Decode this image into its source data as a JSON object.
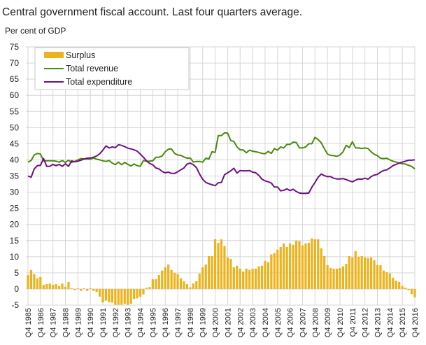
{
  "chart_data": {
    "type": "bar+line",
    "title": "Central government fiscal account. Last four quarters average.",
    "ylabel": "Per cent of GDP",
    "xlabel": "",
    "ylim": [
      -5,
      75
    ],
    "yticks": [
      -5,
      0,
      5,
      10,
      15,
      20,
      25,
      30,
      35,
      40,
      45,
      50,
      55,
      60,
      65,
      70,
      75
    ],
    "grid": true,
    "legend_placement": "top-left",
    "x_start": "Q4 1985",
    "x_end": "Q4 2016",
    "x_frequency": "quarterly",
    "xtick_labels": [
      "Q4 1985",
      "Q4 1986",
      "Q4 1987",
      "Q4 1988",
      "Q4 1989",
      "Q4 1990",
      "Q4 1991",
      "Q4 1992",
      "Q4 1993",
      "Q4 1994",
      "Q4 1995",
      "Q4 1996",
      "Q4 1997",
      "Q4 1998",
      "Q4 1999",
      "Q4 2000",
      "Q4 2001",
      "Q4 2002",
      "Q4 2003",
      "Q4 2004",
      "Q4 2005",
      "Q4 2006",
      "Q4 2007",
      "Q4 2008",
      "Q4 2009",
      "Q4 2010",
      "Q4 2011",
      "Q4 2012",
      "Q4 2013",
      "Q4 2014",
      "Q4 2015",
      "Q4 2016"
    ],
    "series": [
      {
        "name": "Surplus",
        "type": "bar",
        "color": "#EBB31E",
        "values": [
          4.3,
          5.9,
          4.6,
          3.3,
          3.7,
          1.3,
          1.5,
          1.7,
          1.3,
          1.5,
          0.9,
          1.7,
          0.7,
          2.2,
          0.2,
          -0.4,
          0.2,
          -0.6,
          0.2,
          -0.6,
          0.2,
          -0.6,
          -0.9,
          -2.4,
          -4.2,
          -3.6,
          -4.1,
          -4.2,
          -4.9,
          -4.9,
          -4.9,
          -4.6,
          -4.9,
          -4.6,
          -3.1,
          -2.9,
          -2.4,
          -1.7,
          0.4,
          0.6,
          3.0,
          3.0,
          4.3,
          5.7,
          6.7,
          7.6,
          5.9,
          5.0,
          4.6,
          3.3,
          2.4,
          1.5,
          0.5,
          1.7,
          2.4,
          4.8,
          6.7,
          7.6,
          10.2,
          10.2,
          15.4,
          14.3,
          15.4,
          13.3,
          9.8,
          9.3,
          6.7,
          7.2,
          6.3,
          5.4,
          6.3,
          5.9,
          6.3,
          6.3,
          7.0,
          7.2,
          8.7,
          8.3,
          10.7,
          11.1,
          12.2,
          13.0,
          14.1,
          13.0,
          14.1,
          13.7,
          15.0,
          14.8,
          13.5,
          14.1,
          14.3,
          15.7,
          15.4,
          15.4,
          12.6,
          10.2,
          7.4,
          6.5,
          6.3,
          6.3,
          6.5,
          7.0,
          7.8,
          10.2,
          9.8,
          11.7,
          10.0,
          10.2,
          9.8,
          9.6,
          9.8,
          8.9,
          7.4,
          7.4,
          5.7,
          5.2,
          4.8,
          3.5,
          2.6,
          2.2,
          0.9,
          0.4,
          -0.4,
          -1.6,
          -2.6
        ]
      },
      {
        "name": "Total revenue",
        "type": "line",
        "color": "#4A8A0C",
        "values": [
          39.3,
          39.8,
          41.5,
          42.0,
          41.8,
          39.7,
          39.7,
          39.7,
          39.7,
          39.6,
          39.3,
          39.8,
          39.2,
          39.9,
          39.2,
          39.5,
          40.0,
          40.4,
          40.3,
          40.3,
          40.2,
          40.6,
          40.2,
          40.0,
          39.7,
          39.5,
          39.8,
          39.0,
          38.5,
          39.3,
          38.5,
          39.2,
          38.6,
          38.1,
          38.7,
          38.2,
          38.0,
          39.8,
          39.5,
          39.6,
          39.7,
          40.8,
          40.8,
          41.2,
          42.5,
          43.3,
          43.4,
          42.0,
          41.5,
          41.4,
          40.9,
          40.5,
          40.6,
          39.3,
          39.5,
          39.5,
          39.3,
          40.5,
          40.3,
          42.5,
          42.3,
          47.5,
          47.5,
          48.4,
          48.3,
          46.0,
          45.7,
          44.0,
          43.1,
          43.1,
          42.2,
          43.0,
          42.7,
          42.5,
          42.3,
          42.0,
          41.9,
          42.6,
          42.0,
          43.5,
          43.0,
          44.0,
          43.7,
          44.8,
          44.8,
          45.5,
          45.4,
          43.7,
          43.7,
          44.0,
          45.0,
          45.0,
          47.0,
          46.3,
          45.3,
          43.5,
          41.8,
          41.4,
          41.3,
          41.1,
          41.5,
          42.5,
          44.5,
          43.8,
          45.6,
          43.7,
          43.7,
          43.5,
          43.7,
          43.5,
          42.5,
          41.7,
          41.3,
          40.5,
          40.4,
          40.5,
          40.0,
          39.6,
          39.3,
          39.0,
          38.8,
          38.7,
          38.3,
          38.0,
          37.2
        ]
      },
      {
        "name": "Total expenditure",
        "type": "line",
        "color": "#6E1083",
        "values": [
          35.0,
          34.6,
          37.2,
          38.2,
          38.3,
          40.4,
          38.0,
          38.0,
          38.6,
          38.2,
          38.6,
          38.0,
          38.8,
          38.0,
          39.7,
          39.4,
          39.6,
          39.9,
          40.3,
          40.5,
          40.6,
          40.8,
          41.2,
          41.9,
          43.0,
          44.3,
          43.7,
          44.0,
          43.8,
          44.7,
          44.5,
          44.1,
          43.6,
          43.4,
          43.1,
          42.7,
          41.8,
          40.8,
          39.7,
          38.9,
          38.5,
          37.5,
          37.2,
          36.4,
          36.0,
          36.2,
          35.8,
          35.8,
          36.3,
          36.9,
          37.5,
          38.7,
          39.0,
          38.5,
          37.6,
          35.6,
          34.0,
          33.0,
          32.6,
          32.3,
          32.0,
          32.9,
          33.0,
          35.4,
          36.0,
          36.6,
          37.4,
          35.9,
          36.7,
          36.6,
          36.6,
          36.7,
          36.2,
          36.0,
          35.2,
          34.0,
          33.5,
          33.2,
          32.8,
          31.6,
          31.6,
          30.4,
          30.6,
          31.0,
          30.5,
          30.9,
          30.2,
          29.7,
          29.6,
          29.6,
          29.7,
          31.5,
          33.0,
          34.6,
          35.6,
          35.1,
          34.8,
          34.8,
          34.3,
          34.1,
          34.1,
          34.2,
          33.9,
          33.5,
          33.2,
          33.7,
          34.1,
          34.0,
          34.3,
          34.0,
          34.8,
          35.3,
          35.5,
          36.2,
          36.7,
          36.9,
          37.5,
          38.2,
          38.6,
          39.0,
          39.3,
          39.6,
          39.9,
          39.9,
          40.0
        ]
      }
    ]
  }
}
